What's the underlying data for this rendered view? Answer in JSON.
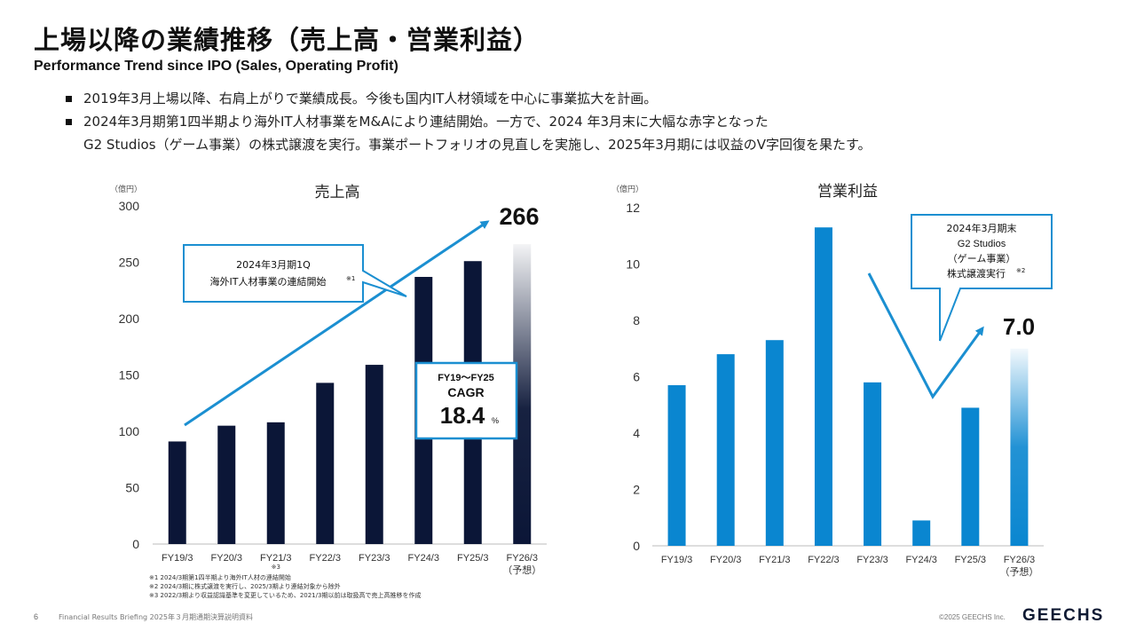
{
  "page": {
    "title": "上場以降の業績推移（売上高・営業利益）",
    "subtitle": "Performance Trend since IPO (Sales, Operating Profit)",
    "bullets": [
      {
        "lines": [
          "2019年3月上場以降、右肩上がりで業績成長。今後も国内IT人材領域を中心に事業拡大を計画。"
        ]
      },
      {
        "lines": [
          "2024年3月期第1四半期より海外IT人材事業をM&Aにより連結開始。一方で、2024 年3月末に大幅な赤字となった",
          "G2 Studios（ゲーム事業）の株式譲渡を実行。事業ポートフォリオの見直しを実施し、2025年3月期には収益のV字回復を果たす。"
        ]
      }
    ],
    "notes": [
      "※1 2024/3期第1四半期より海外IT人材の連結開始",
      "※2 2024/3期に株式譲渡を実行し、2025/3期より連結対象から除外",
      "※3 2022/3期より収益認識基準を変更しているため、2021/3期以前は取扱高で売上高推移を作成"
    ],
    "footer": {
      "page_number": "6",
      "doc_title": "Financial Results Briefing 2025年３月期通期決算説明資料",
      "copyright": "©2025 GEECHS Inc.",
      "logo": "GEECHS"
    },
    "colors": {
      "sales_bar": "#0b1637",
      "profit_bar": "#0a86d0",
      "accent_arrow": "#1b8fd1"
    }
  },
  "chart_data": [
    {
      "type": "bar",
      "title": "売上高",
      "unit": "（億円）",
      "categories": [
        "FY19/3",
        "FY20/3",
        "FY21/3",
        "FY22/3",
        "FY23/3",
        "FY24/3",
        "FY25/3",
        "FY26/3"
      ],
      "category_sublabels": [
        "",
        "",
        "※3",
        "",
        "",
        "",
        "",
        "（予想）"
      ],
      "values": [
        91,
        105,
        108,
        143,
        159,
        237,
        251,
        266
      ],
      "forecast_index": 7,
      "ylim": [
        0,
        300
      ],
      "yticks": [
        "0",
        "50",
        "100",
        "150",
        "200",
        "250",
        "300"
      ],
      "grid": false,
      "value_label": "266",
      "callout": {
        "lines": [
          "2024年3月期1Q",
          "海外IT人材事業の連結開始"
        ],
        "sup": "※1"
      },
      "cagr": {
        "period": "FY19～FY25",
        "label": "CAGR",
        "value": "18.4",
        "unit": "%"
      }
    },
    {
      "type": "bar",
      "title": "営業利益",
      "unit": "（億円）",
      "categories": [
        "FY19/3",
        "FY20/3",
        "FY21/3",
        "FY22/3",
        "FY23/3",
        "FY24/3",
        "FY25/3",
        "FY26/3"
      ],
      "category_sublabels": [
        "",
        "",
        "",
        "",
        "",
        "",
        "",
        "（予想）"
      ],
      "values": [
        5.7,
        6.8,
        7.3,
        11.3,
        5.8,
        0.9,
        4.9,
        7.0
      ],
      "forecast_index": 7,
      "ylim": [
        0,
        12
      ],
      "yticks": [
        "0",
        "2",
        "4",
        "6",
        "8",
        "10",
        "12"
      ],
      "grid": false,
      "value_label": "7.0",
      "callout": {
        "lines": [
          "2024年3月期末",
          "G2 Studios",
          "（ゲーム事業）",
          "株式譲渡実行"
        ],
        "sup": "※2"
      }
    }
  ]
}
